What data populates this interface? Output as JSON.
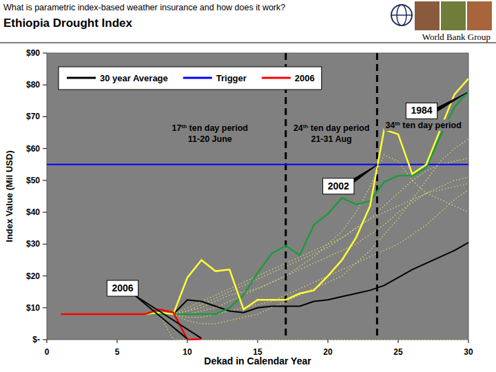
{
  "header": {
    "question": "What is parametric index-based weather insurance and how does it work?",
    "title": "Ethiopia Drought Index",
    "organization": "World Bank Group"
  },
  "chart_data": {
    "type": "line",
    "x_label": "Dekad in Calendar Year",
    "y_label": "Index Value (Mil USD)",
    "x": [
      0,
      1,
      2,
      3,
      4,
      5,
      6,
      7,
      8,
      9,
      10,
      11,
      12,
      13,
      14,
      15,
      16,
      17,
      18,
      19,
      20,
      21,
      22,
      23,
      24,
      25,
      26,
      27,
      28,
      29,
      30
    ],
    "xlim": [
      0,
      30
    ],
    "xticks": [
      0,
      5,
      10,
      15,
      20,
      25,
      30
    ],
    "ylim": [
      0,
      90
    ],
    "yticks": [
      {
        "value": 0,
        "label": "$-"
      },
      {
        "value": 10,
        "label": "$10"
      },
      {
        "value": 20,
        "label": "$20"
      },
      {
        "value": 30,
        "label": "$30"
      },
      {
        "value": 40,
        "label": "$40"
      },
      {
        "value": 50,
        "label": "$50"
      },
      {
        "value": 60,
        "label": "$60"
      },
      {
        "value": 70,
        "label": "$70"
      },
      {
        "value": 80,
        "label": "$80"
      },
      {
        "value": 90,
        "label": "$90"
      }
    ],
    "legend": "top",
    "series": [
      {
        "name": "30 year Average",
        "color": "#000000",
        "values": [
          null,
          null,
          null,
          null,
          null,
          null,
          null,
          8,
          8,
          8,
          12.5,
          12,
          10.5,
          9,
          8.5,
          10,
          10.5,
          10.5,
          10.5,
          12,
          12.5,
          13.5,
          14.5,
          15.5,
          17,
          19.5,
          22,
          24,
          26,
          28,
          30.5
        ]
      },
      {
        "name": "Trigger",
        "color": "#0000ff",
        "values": [
          55,
          55,
          55,
          55,
          55,
          55,
          55,
          55,
          55,
          55,
          55,
          55,
          55,
          55,
          55,
          55,
          55,
          55,
          55,
          55,
          55,
          55,
          55,
          55,
          55,
          55,
          55,
          55,
          55,
          55,
          55
        ]
      },
      {
        "name": "2006",
        "color": "#ff0000",
        "values": [
          null,
          8,
          8,
          8,
          8,
          8,
          8,
          8,
          9.5,
          8.5,
          0,
          0.2,
          null,
          null,
          null,
          null,
          null,
          null,
          null,
          null,
          null,
          null,
          null,
          null,
          null,
          null,
          null,
          null,
          null,
          null,
          null
        ]
      }
    ],
    "callout_series": [
      {
        "name": "1984",
        "color": "#1e9a3c",
        "values": [
          null,
          null,
          null,
          null,
          null,
          null,
          null,
          8,
          8,
          8,
          8,
          8,
          8,
          10,
          14,
          21,
          27,
          29.5,
          26.5,
          36,
          39.5,
          44.5,
          42.5,
          43.5,
          49.5,
          51.5,
          51.5,
          54,
          64,
          73,
          78
        ]
      },
      {
        "name": "2002",
        "color": "#ffff33",
        "values": [
          null,
          null,
          null,
          null,
          null,
          null,
          null,
          8,
          8.5,
          8,
          19.5,
          25,
          21.5,
          22,
          9.5,
          12.5,
          12.5,
          12.5,
          14.5,
          15.5,
          20,
          25,
          32,
          42,
          66,
          64.5,
          52,
          55,
          66,
          77,
          82
        ]
      }
    ],
    "other_years": [
      {
        "color": "#e0dc6a",
        "line_style": "dotted",
        "values": [
          null,
          null,
          null,
          null,
          null,
          null,
          null,
          8,
          8,
          8,
          6,
          5,
          5,
          6,
          7,
          8,
          10,
          12,
          14,
          16,
          18,
          20,
          24,
          28,
          33,
          38,
          44,
          50,
          56,
          60,
          63
        ]
      },
      {
        "color": "#e0dc6a",
        "line_style": "dotted",
        "values": [
          null,
          null,
          null,
          null,
          null,
          null,
          null,
          8,
          8,
          8,
          10,
          12,
          14,
          16,
          18,
          20,
          22,
          24,
          26,
          28,
          30,
          32,
          35,
          38,
          42,
          46,
          50,
          53,
          55,
          56,
          57
        ]
      },
      {
        "color": "#e0dc6a",
        "line_style": "dotted",
        "values": [
          null,
          null,
          null,
          null,
          null,
          null,
          null,
          8,
          8,
          8,
          9,
          10,
          12,
          14,
          15,
          16,
          18,
          20,
          22,
          24,
          26,
          28,
          30,
          33,
          36,
          40,
          43,
          46,
          48,
          50,
          51
        ]
      },
      {
        "color": "#e0dc6a",
        "line_style": "dotted",
        "values": [
          null,
          null,
          null,
          null,
          null,
          null,
          null,
          8,
          8,
          8,
          8,
          9,
          10,
          12,
          14,
          16,
          18,
          20,
          23,
          26,
          30,
          34,
          40,
          48,
          58,
          56,
          50,
          46,
          44,
          42,
          40
        ]
      },
      {
        "color": "#e0dc6a",
        "line_style": "dotted",
        "values": [
          null,
          null,
          null,
          null,
          null,
          null,
          null,
          8,
          8,
          8,
          7,
          7,
          8,
          9,
          10,
          11,
          12,
          14,
          16,
          18,
          20,
          22,
          24,
          26,
          28,
          30,
          33,
          36,
          40,
          44,
          47
        ]
      },
      {
        "color": "#e0dc6a",
        "line_style": "dotted",
        "values": [
          null,
          null,
          null,
          null,
          null,
          null,
          null,
          8,
          8,
          0,
          0,
          0,
          0,
          0,
          0,
          0,
          0,
          0,
          0,
          0,
          0,
          0,
          0,
          0,
          0,
          0,
          0,
          0,
          0,
          0,
          0
        ]
      },
      {
        "color": "#e0dc6a",
        "line_style": "dotted",
        "values": [
          null,
          null,
          null,
          null,
          null,
          null,
          null,
          8,
          8,
          8,
          9,
          11,
          13,
          15,
          17,
          19,
          21,
          23,
          25,
          27,
          29,
          32,
          35,
          38,
          40,
          42,
          44,
          46,
          47,
          48,
          49
        ]
      }
    ],
    "period_markers": [
      {
        "x": 17,
        "text": [
          "17th ten day period",
          "11-20 June"
        ]
      },
      {
        "x": 23.5,
        "text": [
          "24th ten day period",
          "21-31 Aug"
        ]
      }
    ],
    "period_note": "34th ten day period"
  }
}
